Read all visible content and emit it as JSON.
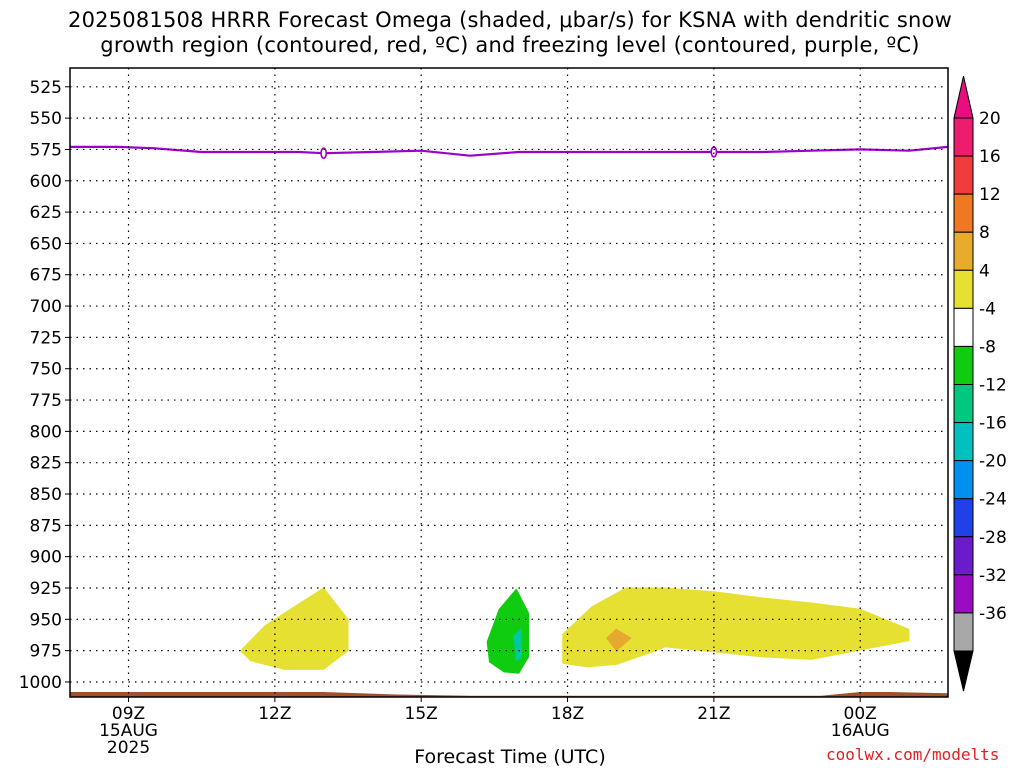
{
  "title_lines": [
    "2025081508 HRRR Forecast Omega (shaded, μbar/s) for KSNA with dendritic snow",
    "growth region (contoured, red, ºC) and freezing level (contoured, purple, ºC)"
  ],
  "credit": "coolwx.com/modelts",
  "colors": {
    "freezing_level": "#9b00c8",
    "terrain": "#a0522d",
    "grid": "#000000"
  },
  "chart_data": {
    "type": "heatmap",
    "xlabel": "Forecast Time (UTC)",
    "ylabel": "",
    "x_range_hours": [
      7.8,
      25.8
    ],
    "y_range_hpa": [
      510,
      1012
    ],
    "y_scale": "reversed",
    "grid": true,
    "y_ticks": [
      525,
      550,
      575,
      600,
      625,
      650,
      675,
      700,
      725,
      750,
      775,
      800,
      825,
      850,
      875,
      900,
      925,
      950,
      975,
      1000
    ],
    "x_ticks": [
      {
        "hour": 9,
        "lines": [
          "09Z",
          "15AUG",
          "2025"
        ]
      },
      {
        "hour": 12,
        "lines": [
          "12Z"
        ]
      },
      {
        "hour": 15,
        "lines": [
          "15Z"
        ]
      },
      {
        "hour": 18,
        "lines": [
          "18Z"
        ]
      },
      {
        "hour": 21,
        "lines": [
          "21Z"
        ]
      },
      {
        "hour": 24,
        "lines": [
          "00Z",
          "16AUG"
        ]
      }
    ],
    "freezing_level": {
      "hours": [
        7.8,
        8.8,
        9.5,
        10.5,
        11.5,
        12.5,
        13,
        14,
        15,
        16,
        17,
        18,
        19,
        20,
        21,
        22,
        23,
        24,
        25,
        25.8
      ],
      "hpa": [
        573,
        573,
        574,
        577,
        577,
        577,
        578,
        577,
        576,
        580,
        577,
        577,
        577,
        577,
        577,
        577,
        576,
        575,
        576,
        573
      ]
    },
    "shaded_regions": [
      {
        "class": "4 to 8",
        "color": "#e6e032",
        "outline": [
          [
            11.3,
            975
          ],
          [
            11.8,
            955
          ],
          [
            13,
            925
          ],
          [
            13.5,
            950
          ],
          [
            13.5,
            975
          ],
          [
            13,
            990
          ],
          [
            12.2,
            990
          ],
          [
            11.5,
            983
          ]
        ]
      },
      {
        "class": "4 to 8",
        "color": "#e6e032",
        "outline": [
          [
            17.9,
            962
          ],
          [
            18.5,
            940
          ],
          [
            19.2,
            925
          ],
          [
            20,
            925
          ],
          [
            21,
            928
          ],
          [
            22,
            933
          ],
          [
            23,
            937
          ],
          [
            24,
            942
          ],
          [
            25,
            958
          ],
          [
            25,
            967
          ],
          [
            23,
            982
          ],
          [
            22,
            980
          ],
          [
            21,
            976
          ],
          [
            20,
            972
          ],
          [
            19.6,
            978
          ],
          [
            19,
            986
          ],
          [
            18.4,
            988
          ],
          [
            17.9,
            985
          ]
        ]
      },
      {
        "class": "8 to 12",
        "color": "#e6a82e",
        "outline": [
          [
            18.8,
            965
          ],
          [
            19,
            958
          ],
          [
            19.3,
            965
          ],
          [
            19,
            975
          ]
        ]
      },
      {
        "class": "-8 to -4",
        "color": "#10cc10",
        "outline": [
          [
            16.35,
            968
          ],
          [
            16.6,
            942
          ],
          [
            16.95,
            926
          ],
          [
            17.2,
            945
          ],
          [
            17.2,
            980
          ],
          [
            17,
            993
          ],
          [
            16.7,
            992
          ],
          [
            16.4,
            984
          ]
        ]
      },
      {
        "class": "-12 to -8",
        "color": "#00c8a0",
        "outline": [
          [
            16.9,
            963
          ],
          [
            17.05,
            958
          ],
          [
            17.05,
            980
          ],
          [
            16.95,
            983
          ]
        ]
      }
    ],
    "terrain": {
      "hours": [
        7.8,
        11,
        13,
        14.5,
        16,
        23.2,
        24,
        24.6,
        25.8
      ],
      "hpa": [
        1008,
        1008,
        1008,
        1010,
        1011,
        1011,
        1008,
        1008,
        1009
      ]
    },
    "colorbar": {
      "labels": [
        20,
        16,
        12,
        8,
        4,
        -4,
        -8,
        -12,
        -16,
        -20,
        -24,
        -28,
        -32,
        -36
      ],
      "fill_colors": [
        "#ee1c6c",
        "#f03c3c",
        "#f07820",
        "#e8ac2c",
        "#e6e032",
        "#ffffff",
        "#10cc10",
        "#00c880",
        "#00c0c0",
        "#0090f0",
        "#2040e8",
        "#6a1ccc",
        "#9a0cc4",
        "#a8a8a8"
      ],
      "top_arrow_color": "#e60e80",
      "bottom_arrow_color": "#000000"
    }
  }
}
